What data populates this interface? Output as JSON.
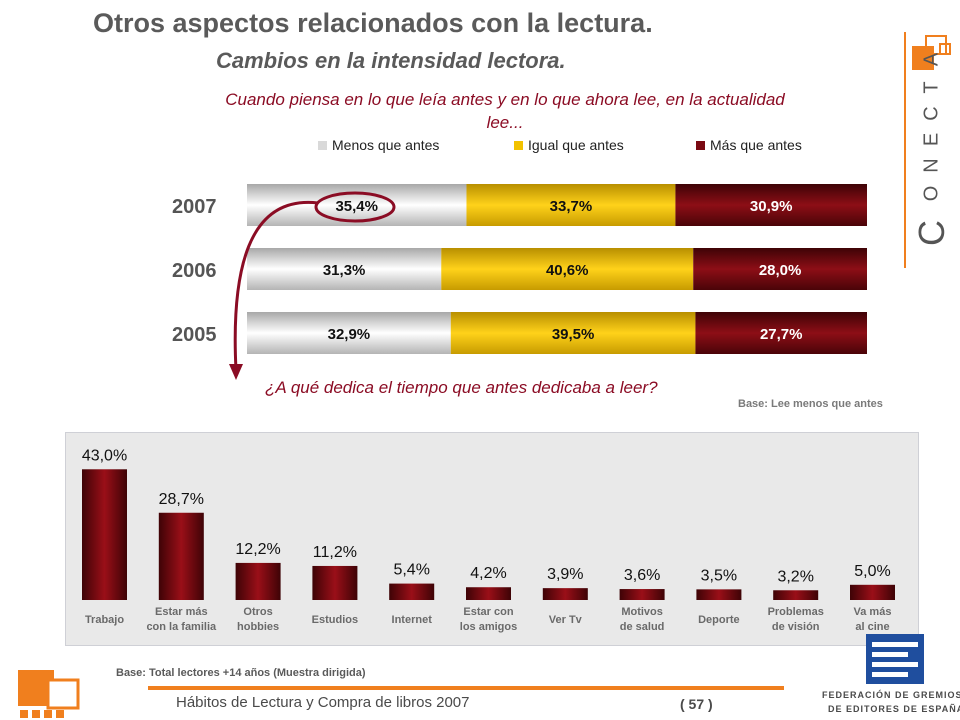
{
  "header": {
    "title": "Otros aspectos relacionados con la lectura.",
    "subtitle": "Cambios en la intensidad lectora.",
    "brand_letters": [
      "C",
      "O",
      "N",
      "E",
      "C",
      "T",
      "A"
    ]
  },
  "chart_data": [
    {
      "type": "bar",
      "orientation": "horizontal",
      "stacked": true,
      "title": "Cuando piensa en lo que leía antes y en lo que ahora lee, en la actualidad lee...",
      "categories": [
        "2007",
        "2006",
        "2005"
      ],
      "series": [
        {
          "name": "Menos que antes",
          "values": [
            35.4,
            31.3,
            32.9
          ],
          "labels": [
            "35,4%",
            "31,3%",
            "32,9%"
          ],
          "color": "#d9d9d9"
        },
        {
          "name": "Igual que antes",
          "values": [
            33.7,
            40.6,
            39.5
          ],
          "labels": [
            "33,7%",
            "40,6%",
            "39,5%"
          ],
          "color": "#f2c200"
        },
        {
          "name": "Más que antes",
          "values": [
            30.9,
            28.0,
            27.7
          ],
          "labels": [
            "30,9%",
            "28,0%",
            "27,7%"
          ],
          "color": "#7a0a12"
        }
      ],
      "legend": "top"
    },
    {
      "type": "bar",
      "title": "¿A qué dedica el tiempo que antes dedicaba a leer?",
      "note": "Base: Lee menos que antes",
      "categories": [
        "Trabajo",
        "Estar más con la familia",
        "Otros hobbies",
        "Estudios",
        "Internet",
        "Estar con los amigos",
        "Ver Tv",
        "Motivos de salud",
        "Deporte",
        "Problemas de visión",
        "Va más al cine"
      ],
      "category_lines": [
        [
          "Trabajo"
        ],
        [
          "Estar más",
          "con la familia"
        ],
        [
          "Otros",
          "hobbies"
        ],
        [
          "Estudios"
        ],
        [
          "Internet"
        ],
        [
          "Estar con",
          "los amigos"
        ],
        [
          "Ver Tv"
        ],
        [
          "Motivos",
          "de salud"
        ],
        [
          "Deporte"
        ],
        [
          "Problemas",
          "de visión"
        ],
        [
          "Va más",
          "al cine"
        ]
      ],
      "values": [
        43.0,
        28.7,
        12.2,
        11.2,
        5.4,
        4.2,
        3.9,
        3.6,
        3.5,
        3.2,
        5.0
      ],
      "labels": [
        "43,0%",
        "28,7%",
        "12,2%",
        "11,2%",
        "5,4%",
        "4,2%",
        "3,9%",
        "3,6%",
        "3,5%",
        "3,2%",
        "5,0%"
      ],
      "color": "#7a0a12",
      "ylim": [
        0,
        50
      ]
    }
  ],
  "footer": {
    "base": "Base: Total lectores +14 años (Muestra dirigida)",
    "source": "Hábitos de Lectura y Compra de libros 2007",
    "page": "( 57 )",
    "federation_line1": "FEDERACIÓN DE GREMIOS",
    "federation_line2": "DE EDITORES DE ESPAÑA"
  },
  "colors": {
    "accent_orange": "#f07f1e",
    "dark_red": "#7a0a12",
    "gold": "#f2c200",
    "grey": "#d9d9d9",
    "question_red": "#8b0c24",
    "federation_blue": "#1f4e9e"
  }
}
